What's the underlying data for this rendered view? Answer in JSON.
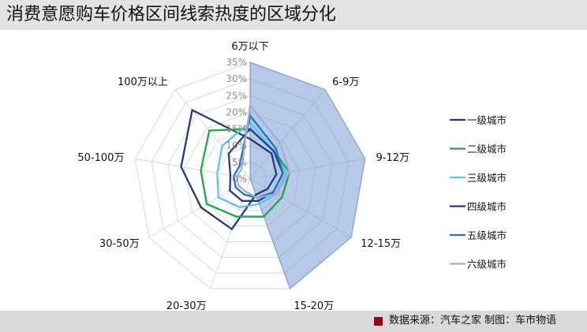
{
  "header": {
    "title": "消费意愿购车价格区间线索热度的区域分化"
  },
  "footer": {
    "source": "数据来源：汽车之家  制图：车市物语",
    "marker_color": "#8b0d12"
  },
  "chart_data": {
    "type": "radar",
    "categories": [
      "6万以下",
      "6-9万",
      "9-12万",
      "12-15万",
      "15-20万",
      "20-30万",
      "30-50万",
      "50-100万",
      "100万以上"
    ],
    "r_ticks": [
      "0%",
      "5%",
      "10%",
      "15%",
      "20%",
      "25%",
      "30%",
      "35%"
    ],
    "r_range": [
      0,
      35
    ],
    "grid": true,
    "legend_position": "right",
    "series": [
      {
        "name": "一级城市",
        "color": "#1f3c78",
        "values": [
          12,
          10,
          8,
          6,
          5,
          16,
          17,
          21,
          27
        ]
      },
      {
        "name": "二级城市",
        "color": "#1ea64a",
        "values": [
          15,
          11,
          12,
          11,
          12,
          12,
          15,
          15,
          19
        ]
      },
      {
        "name": "三级城市",
        "color": "#5fc2e3",
        "values": [
          17,
          11,
          11,
          9,
          8,
          9,
          11,
          10,
          13
        ]
      },
      {
        "name": "四级城市",
        "color": "#243b8f",
        "values": [
          15,
          11,
          10,
          8,
          7,
          7,
          7,
          6,
          10
        ]
      },
      {
        "name": "五级城市",
        "color": "#1677b8",
        "values": [
          19,
          12,
          10,
          8,
          6,
          5,
          5,
          5,
          5
        ]
      },
      {
        "name": "六级城市",
        "color": "#a8a8e2",
        "values": [
          22,
          14,
          12,
          9,
          6,
          4,
          4,
          4,
          4
        ]
      },
      {
        "name": "",
        "color": "#6e94cd",
        "fill": true,
        "values": [
          35,
          35,
          35,
          35,
          35,
          0,
          0,
          0,
          0
        ]
      }
    ]
  }
}
